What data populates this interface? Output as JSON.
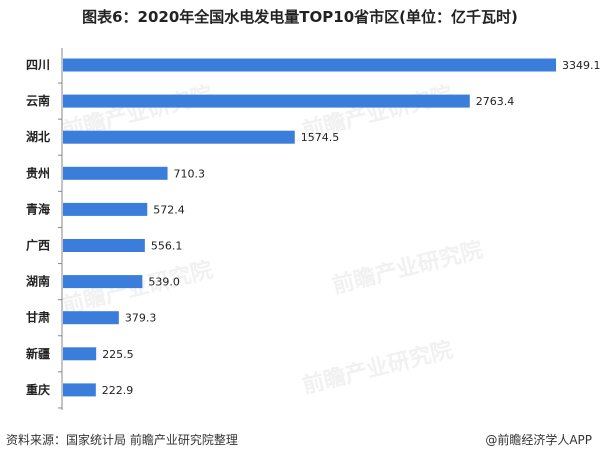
{
  "title": "图表6：2020年全国水电发电量TOP10省市区(单位：亿千瓦时)",
  "source": "资料来源：国家统计局 前瞻产业研究院整理",
  "credit": "@前瞻经济学人APP",
  "watermark": "前瞻产业研究院",
  "colors": {
    "bar": "#3b7ddb",
    "axis": "#888888",
    "text": "#222222"
  },
  "chart_data": {
    "type": "bar",
    "orientation": "horizontal",
    "categories": [
      "四川",
      "云南",
      "湖北",
      "贵州",
      "青海",
      "广西",
      "湖南",
      "甘肃",
      "新疆",
      "重庆"
    ],
    "values": [
      3349.1,
      2763.4,
      1574.5,
      710.3,
      572.4,
      556.1,
      539.0,
      379.3,
      225.5,
      222.9
    ],
    "value_labels": [
      "3349.1",
      "2763.4",
      "1574.5",
      "710.3",
      "572.4",
      "556.1",
      "539.0",
      "379.3",
      "225.5",
      "222.9"
    ],
    "xlim": [
      0,
      3349.1
    ],
    "grid": false,
    "legend": "none"
  }
}
